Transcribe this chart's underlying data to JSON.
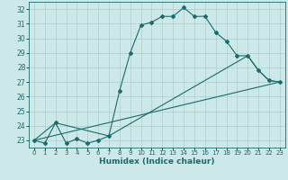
{
  "xlabel": "Humidex (Indice chaleur)",
  "bg_color": "#cde8e8",
  "grid_color": "#b0cccc",
  "line_color": "#1a6b6b",
  "xlim": [
    -0.5,
    23.5
  ],
  "ylim": [
    22.5,
    32.5
  ],
  "xticks": [
    0,
    1,
    2,
    3,
    4,
    5,
    6,
    7,
    8,
    9,
    10,
    11,
    12,
    13,
    14,
    15,
    16,
    17,
    18,
    19,
    20,
    21,
    22,
    23
  ],
  "yticks": [
    23,
    24,
    25,
    26,
    27,
    28,
    29,
    30,
    31,
    32
  ],
  "line1_x": [
    0,
    1,
    2,
    3,
    4,
    5,
    6,
    7,
    8,
    9,
    10,
    11,
    12,
    13,
    14,
    15,
    16,
    17,
    18,
    19,
    20,
    21,
    22,
    23
  ],
  "line1_y": [
    23.0,
    22.8,
    24.2,
    22.8,
    23.1,
    22.8,
    23.0,
    23.3,
    26.4,
    29.0,
    30.9,
    31.1,
    31.5,
    31.5,
    32.1,
    31.5,
    31.5,
    30.4,
    29.8,
    28.8,
    28.8,
    27.8,
    27.1,
    27.0
  ],
  "line2_x": [
    0,
    2,
    7,
    20,
    21,
    22,
    23
  ],
  "line2_y": [
    23.0,
    24.2,
    23.3,
    28.8,
    27.8,
    27.1,
    27.0
  ],
  "line3_x": [
    0,
    23
  ],
  "line3_y": [
    23.0,
    27.0
  ]
}
